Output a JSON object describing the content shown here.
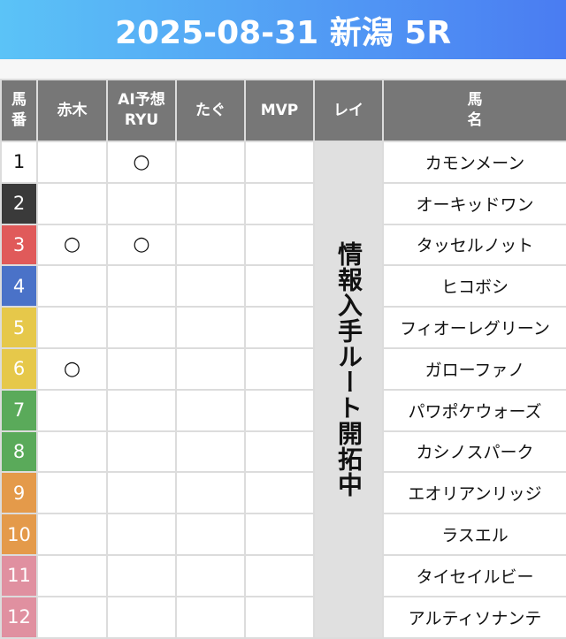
{
  "title": "2025-08-31 新潟 5R",
  "headers": {
    "num": "馬\n番",
    "akagi": "赤木",
    "ai": "AI予想\nRYU",
    "tagu": "たぐ",
    "mvp": "MVP",
    "rei": "レイ",
    "name": "馬\n名"
  },
  "rei_text": "情報入手ルート開拓中",
  "rows": [
    {
      "num": "1",
      "color": "#ffffff",
      "akagi": "",
      "ai": "○",
      "name": "カモンメーン"
    },
    {
      "num": "2",
      "color": "#3a3a3a",
      "akagi": "",
      "ai": "",
      "name": "オーキッドワン"
    },
    {
      "num": "3",
      "color": "#e05a5a",
      "akagi": "○",
      "ai": "○",
      "name": "タッセルノット"
    },
    {
      "num": "4",
      "color": "#4a72c8",
      "akagi": "",
      "ai": "",
      "name": "ヒコボシ"
    },
    {
      "num": "5",
      "color": "#e6c84a",
      "akagi": "",
      "ai": "",
      "name": "フィオーレグリーン"
    },
    {
      "num": "6",
      "color": "#e6c84a",
      "akagi": "○",
      "ai": "",
      "name": "ガローファノ"
    },
    {
      "num": "7",
      "color": "#5aaa5a",
      "akagi": "",
      "ai": "",
      "name": "パワポケウォーズ"
    },
    {
      "num": "8",
      "color": "#5aaa5a",
      "akagi": "",
      "ai": "",
      "name": "カシノスパーク"
    },
    {
      "num": "9",
      "color": "#e49a4a",
      "akagi": "",
      "ai": "",
      "name": "エオリアンリッジ"
    },
    {
      "num": "10",
      "color": "#e49a4a",
      "akagi": "",
      "ai": "",
      "name": "ラスエル"
    },
    {
      "num": "11",
      "color": "#e090a0",
      "akagi": "",
      "ai": "",
      "name": "タイセイルビー"
    },
    {
      "num": "12",
      "color": "#e090a0",
      "akagi": "",
      "ai": "",
      "name": "アルティソナンテ"
    }
  ]
}
